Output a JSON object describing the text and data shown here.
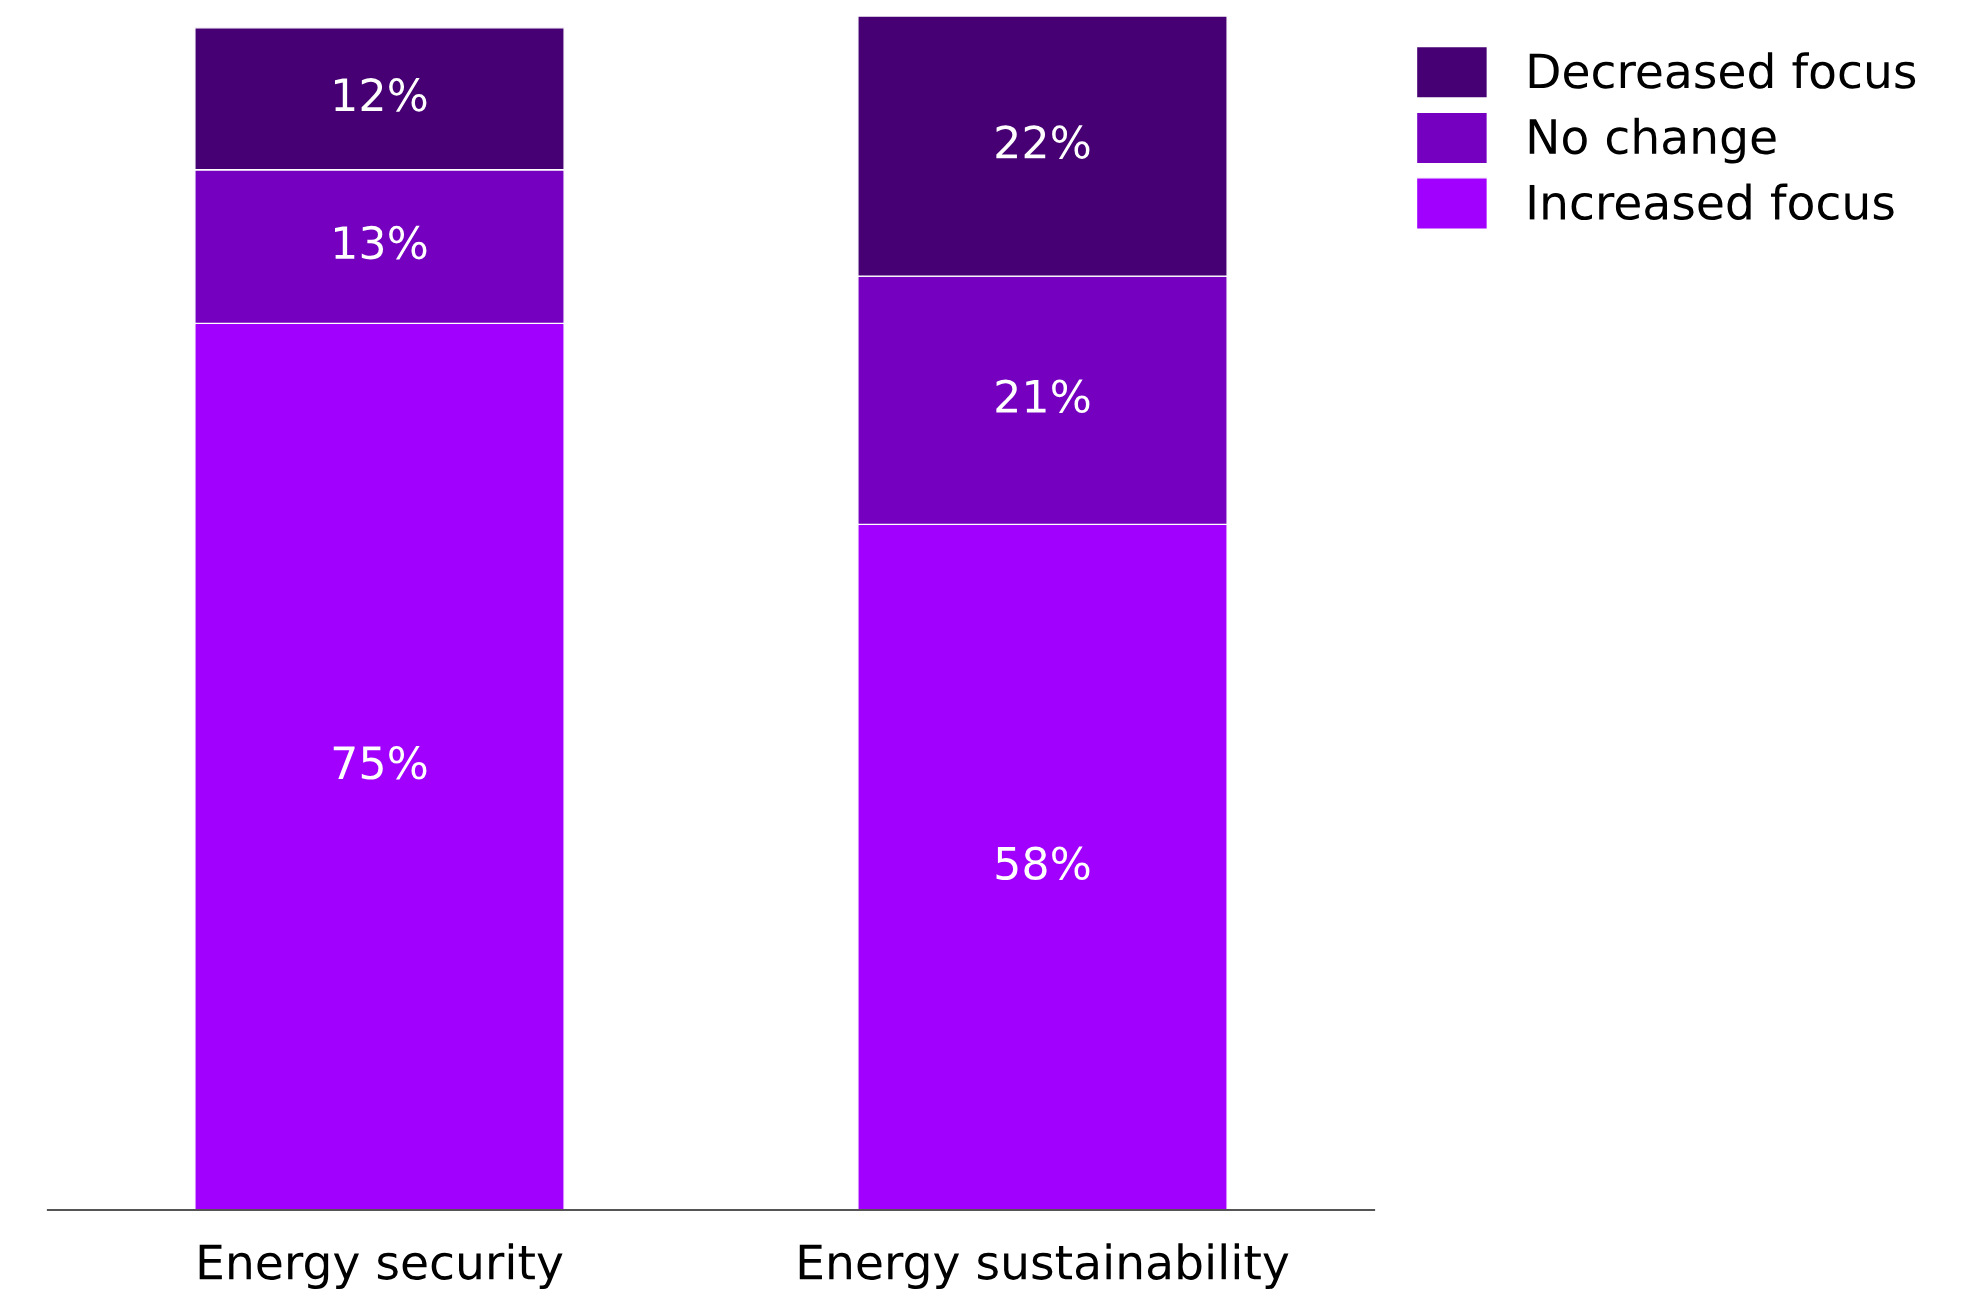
{
  "chart_data": {
    "type": "bar",
    "stacked": true,
    "categories": [
      "Energy security",
      "Energy sustainability"
    ],
    "series": [
      {
        "name": "Increased focus",
        "color": "#a100ff",
        "values": [
          75,
          58
        ],
        "value_labels": [
          "75%",
          "58%"
        ]
      },
      {
        "name": "No change",
        "color": "#7500c0",
        "values": [
          13,
          21
        ],
        "value_labels": [
          "13%",
          "21%"
        ]
      },
      {
        "name": "Decreased focus",
        "color": "#460073",
        "values": [
          12,
          22
        ],
        "value_labels": [
          "12%",
          "22%"
        ]
      }
    ],
    "legend": "top right",
    "grid": false
  }
}
